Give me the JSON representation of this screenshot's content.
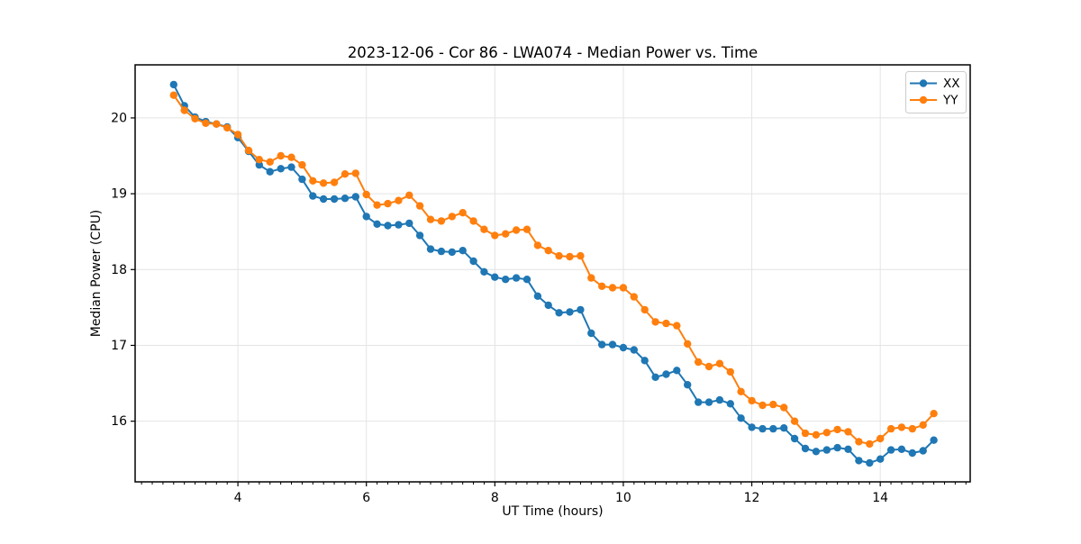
{
  "figure": {
    "title": "2023-12-06 - Cor 86 - LWA074 - Median Power vs. Time",
    "background": "#ffffff"
  },
  "legend": {
    "position": "upper right",
    "items": [
      {
        "label": "XX",
        "color": "#1f77b4"
      },
      {
        "label": "YY",
        "color": "#ff7f0e"
      }
    ]
  },
  "style": {
    "grid_color": "#e4e4e4",
    "spine_color": "#000000",
    "tick_color": "#000000",
    "text_color": "#000000",
    "plot_background": "#ffffff"
  },
  "chart_data": {
    "type": "line",
    "title": "2023-12-06 - Cor 86 - LWA074 - Median Power vs. Time",
    "xlabel": "UT Time (hours)",
    "ylabel": "Median Power (CPU)",
    "xlim": [
      2.4,
      15.4
    ],
    "ylim": [
      15.2,
      20.7
    ],
    "x_ticks_major": [
      4,
      6,
      8,
      10,
      12,
      14
    ],
    "x_minor_tick_step_hours": 0.1667,
    "y_ticks_major": [
      16,
      17,
      18,
      19,
      20
    ],
    "grid": true,
    "legend_position": "upper right",
    "marker": "circle",
    "x": [
      3.0,
      3.167,
      3.333,
      3.5,
      3.667,
      3.833,
      4.0,
      4.167,
      4.333,
      4.5,
      4.667,
      4.833,
      5.0,
      5.167,
      5.333,
      5.5,
      5.667,
      5.833,
      6.0,
      6.167,
      6.333,
      6.5,
      6.667,
      6.833,
      7.0,
      7.167,
      7.333,
      7.5,
      7.667,
      7.833,
      8.0,
      8.167,
      8.333,
      8.5,
      8.667,
      8.833,
      9.0,
      9.167,
      9.333,
      9.5,
      9.667,
      9.833,
      10.0,
      10.167,
      10.333,
      10.5,
      10.667,
      10.833,
      11.0,
      11.167,
      11.333,
      11.5,
      11.667,
      11.833,
      12.0,
      12.167,
      12.333,
      12.5,
      12.667,
      12.833,
      13.0,
      13.167,
      13.333,
      13.5,
      13.667,
      13.833,
      14.0,
      14.167,
      14.333,
      14.5,
      14.667,
      14.833
    ],
    "series": [
      {
        "name": "XX",
        "color": "#1f77b4",
        "values": [
          20.44,
          20.16,
          20.01,
          19.95,
          19.92,
          19.88,
          19.74,
          19.56,
          19.38,
          19.29,
          19.33,
          19.35,
          19.19,
          18.97,
          18.93,
          18.93,
          18.94,
          18.96,
          18.7,
          18.6,
          18.58,
          18.59,
          18.61,
          18.45,
          18.27,
          18.24,
          18.23,
          18.25,
          18.11,
          17.97,
          17.9,
          17.87,
          17.89,
          17.87,
          17.65,
          17.53,
          17.43,
          17.44,
          17.47,
          17.16,
          17.01,
          17.01,
          16.97,
          16.94,
          16.8,
          16.58,
          16.62,
          16.67,
          16.48,
          16.25,
          16.25,
          16.28,
          16.23,
          16.04,
          15.92,
          15.9,
          15.9,
          15.91,
          15.77,
          15.64,
          15.6,
          15.62,
          15.65,
          15.63,
          15.48,
          15.45,
          15.5,
          15.62,
          15.63,
          15.58,
          15.61,
          15.75
        ]
      },
      {
        "name": "YY",
        "color": "#ff7f0e",
        "values": [
          20.3,
          20.1,
          19.99,
          19.93,
          19.92,
          19.87,
          19.78,
          19.57,
          19.45,
          19.42,
          19.5,
          19.48,
          19.38,
          19.17,
          19.14,
          19.15,
          19.26,
          19.27,
          18.99,
          18.85,
          18.87,
          18.91,
          18.98,
          18.84,
          18.66,
          18.64,
          18.7,
          18.75,
          18.64,
          18.53,
          18.45,
          18.47,
          18.52,
          18.53,
          18.32,
          18.25,
          18.18,
          18.17,
          18.18,
          17.89,
          17.78,
          17.76,
          17.76,
          17.64,
          17.47,
          17.31,
          17.29,
          17.26,
          17.02,
          16.78,
          16.72,
          16.76,
          16.65,
          16.39,
          16.27,
          16.21,
          16.22,
          16.18,
          16.0,
          15.84,
          15.82,
          15.85,
          15.89,
          15.86,
          15.73,
          15.7,
          15.77,
          15.9,
          15.92,
          15.9,
          15.95,
          16.1
        ]
      }
    ]
  }
}
